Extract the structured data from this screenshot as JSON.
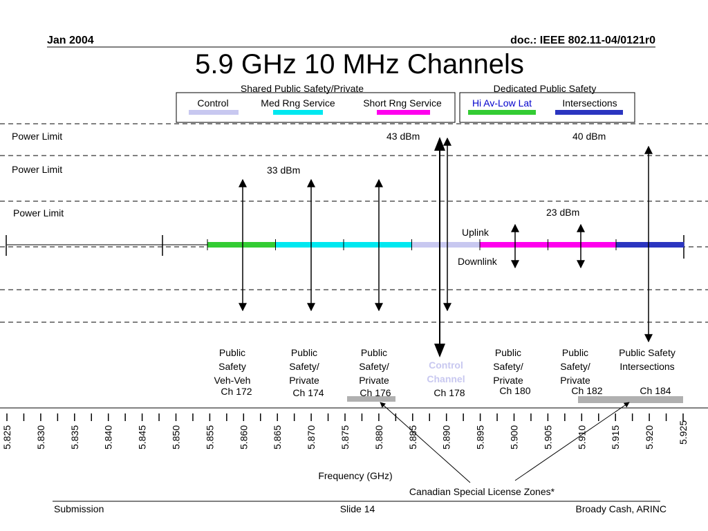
{
  "header": {
    "date": "Jan 2004",
    "doc": "doc.: IEEE 802.11-04/0121r0"
  },
  "title": "5.9 GHz 10 MHz Channels",
  "legend": {
    "shared_title": "Shared Public Safety/Private",
    "dedicated_title": "Dedicated Public Safety",
    "items": [
      {
        "label": "Control",
        "color": "#c8c8f0"
      },
      {
        "label": "Med Rng Service",
        "color": "#00e8f0"
      },
      {
        "label": "Short Rng Service",
        "color": "#ff00ee"
      },
      {
        "label": "Hi Av-Low Lat",
        "color": "#33cc33",
        "text_color": "#0000cc"
      },
      {
        "label": "Intersections",
        "color": "#2b35c0"
      }
    ]
  },
  "power": {
    "label": "Power Limit",
    "levels": [
      "43 dBm",
      "40 dBm",
      "33 dBm",
      "23 dBm"
    ]
  },
  "link": {
    "uplink": "Uplink",
    "downlink": "Downlink"
  },
  "channels": [
    {
      "lines": [
        "Public",
        "Safety",
        "Veh-Veh"
      ],
      "ch": "Ch 172",
      "color": "#33cc33"
    },
    {
      "lines": [
        "Public",
        "Safety/",
        "Private"
      ],
      "ch": "Ch 174",
      "color": "#00e8f0"
    },
    {
      "lines": [
        "Public",
        "Safety/",
        "Private"
      ],
      "ch": "Ch 176",
      "color": "#00e8f0"
    },
    {
      "lines": [
        "Control",
        "Channel"
      ],
      "ch": "Ch 178",
      "color": "#c8c8f0"
    },
    {
      "lines": [
        "Public",
        "Safety/",
        "Private"
      ],
      "ch": "Ch 180",
      "color": "#ff00ee"
    },
    {
      "lines": [
        "Public",
        "Safety/",
        "Private"
      ],
      "ch": "Ch 182",
      "color": "#ff00ee"
    },
    {
      "lines": [
        "Public Safety",
        "Intersections"
      ],
      "ch": "Ch 184",
      "color": "#2b35c0"
    }
  ],
  "axis": {
    "label": "Frequency (GHz)",
    "ticks": [
      "5.825",
      "5.830",
      "5.835",
      "5.840",
      "5.845",
      "5.850",
      "5.855",
      "5.860",
      "5.865",
      "5.870",
      "5.875",
      "5.880",
      "5.885",
      "5.890",
      "5.895",
      "5.900",
      "5.905",
      "5.910",
      "5.915",
      "5.920",
      "5.925"
    ]
  },
  "canadian_zones": "Canadian Special License Zones*",
  "footer": {
    "left": "Submission",
    "center": "Slide 14",
    "right": "Broady Cash, ARINC"
  }
}
